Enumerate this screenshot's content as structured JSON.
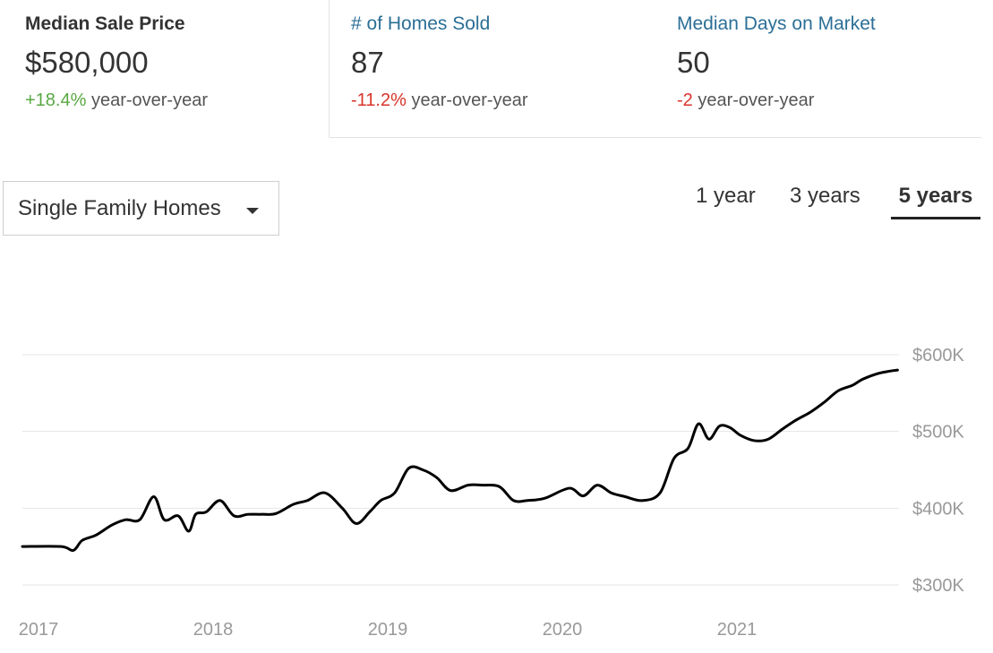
{
  "summary": {
    "tabs": [
      {
        "label": "Median Sale Price",
        "value": "$580,000",
        "change": "+18.4%",
        "change_suffix": " year-over-year"
      },
      {
        "label": "# of Homes Sold",
        "value": "87",
        "change": "-11.2%",
        "change_suffix": " year-over-year"
      },
      {
        "label": "Median Days on Market",
        "value": "50",
        "change": "-2",
        "change_suffix": " year-over-year"
      }
    ]
  },
  "filter": {
    "property_type": "Single Family Homes",
    "caret_icon": "caret-down-icon"
  },
  "ranges": {
    "options": [
      "1 year",
      "3 years",
      "5 years"
    ],
    "selected": "5 years"
  },
  "colors": {
    "line": "#000000",
    "grid": "#e4e4e4",
    "positive": "#59a843",
    "negative": "#d9342b",
    "link": "#2b6f96"
  },
  "chart_data": {
    "type": "line",
    "title": "",
    "xlabel": "",
    "ylabel": "",
    "grid": true,
    "x_ticks": [
      "2017",
      "2018",
      "2019",
      "2020",
      "2021"
    ],
    "y_ticks": [
      "$300K",
      "$400K",
      "$500K",
      "$600K"
    ],
    "ylim": [
      300000,
      600000
    ],
    "xlim": [
      2017.05,
      2021.92
    ],
    "series": [
      {
        "x": [
          2017.05,
          2017.13,
          2017.2,
          2017.25,
          2017.33,
          2017.42,
          2017.5,
          2017.58,
          2017.66,
          2017.72,
          2017.8,
          2017.86,
          2017.9,
          2017.96,
          2018.04,
          2018.12,
          2018.2,
          2018.28,
          2018.36,
          2018.46,
          2018.54,
          2018.64,
          2018.74,
          2018.82,
          2018.9,
          2018.96,
          2019.04,
          2019.12,
          2019.2,
          2019.28,
          2019.36,
          2019.46,
          2019.54,
          2019.64,
          2019.72,
          2019.8,
          2019.9,
          2020.04,
          2020.12,
          2020.2,
          2020.28,
          2020.36,
          2020.46,
          2020.56,
          2020.64,
          2020.72,
          2020.78,
          2020.84,
          2020.9,
          2020.96,
          2021.02,
          2021.1,
          2021.18,
          2021.26,
          2021.34,
          2021.42,
          2021.5,
          2021.58,
          2021.66,
          2021.72,
          2021.8,
          2021.86,
          2021.92
        ],
        "y": [
          350000,
          350000,
          345000,
          358000,
          365000,
          378000,
          385000,
          385000,
          415000,
          385000,
          390000,
          370000,
          392000,
          395000,
          410000,
          390000,
          392000,
          392000,
          393000,
          405000,
          410000,
          420000,
          400000,
          380000,
          396000,
          410000,
          420000,
          452000,
          450000,
          440000,
          423000,
          430000,
          430000,
          428000,
          410000,
          410000,
          413000,
          426000,
          416000,
          430000,
          420000,
          415000,
          410000,
          420000,
          465000,
          478000,
          510000,
          490000,
          507000,
          505000,
          495000,
          488000,
          490000,
          503000,
          515000,
          525000,
          538000,
          553000,
          560000,
          568000,
          575000,
          578000,
          580000
        ]
      }
    ]
  }
}
